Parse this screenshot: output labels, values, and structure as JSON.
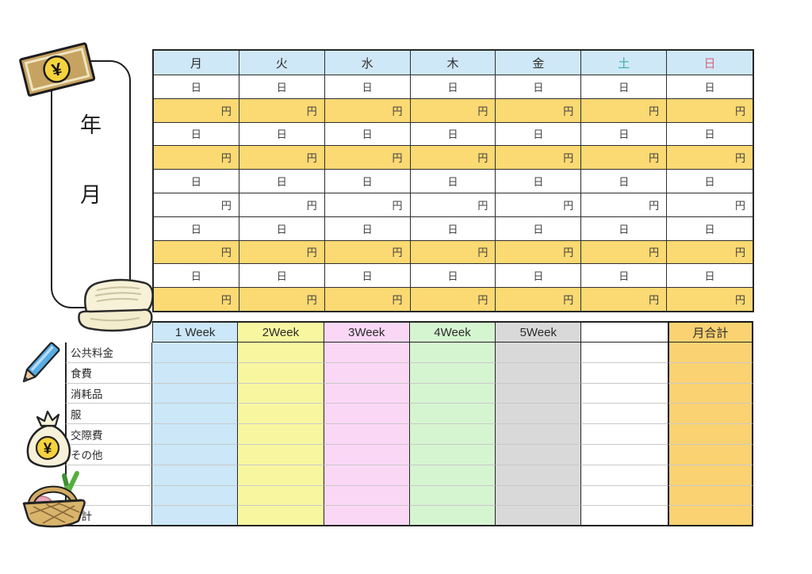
{
  "title_panel": {
    "year_label": "年",
    "month_label": "月"
  },
  "calendar": {
    "header_bg": "#cfe8f8",
    "grid_line_color": "#2d2d2d",
    "columns": 7,
    "day_headers": [
      {
        "label": "月",
        "color": "#2d2d2d"
      },
      {
        "label": "火",
        "color": "#2d2d2d"
      },
      {
        "label": "水",
        "color": "#2d2d2d"
      },
      {
        "label": "木",
        "color": "#2d2d2d"
      },
      {
        "label": "金",
        "color": "#2d2d2d"
      },
      {
        "label": "土",
        "color": "#38aeab"
      },
      {
        "label": "日",
        "color": "#d5697d"
      }
    ],
    "rows": [
      {
        "unit": "日",
        "bg": "#ffffff",
        "align": "center"
      },
      {
        "unit": "円",
        "bg": "#fbd973",
        "align": "right"
      },
      {
        "unit": "日",
        "bg": "#ffffff",
        "align": "center"
      },
      {
        "unit": "円",
        "bg": "#fbd973",
        "align": "right"
      },
      {
        "unit": "日",
        "bg": "#ffffff",
        "align": "center"
      },
      {
        "unit": "円",
        "bg": "#ffffff",
        "align": "right"
      },
      {
        "unit": "日",
        "bg": "#ffffff",
        "align": "center"
      },
      {
        "unit": "円",
        "bg": "#fbd973",
        "align": "right"
      },
      {
        "unit": "日",
        "bg": "#ffffff",
        "align": "center"
      },
      {
        "unit": "円",
        "bg": "#fbd973",
        "align": "right"
      }
    ]
  },
  "summary": {
    "columns": [
      {
        "label": "1 Week",
        "bg": "#cbe7f8",
        "emphasized": false
      },
      {
        "label": "2Week",
        "bg": "#f8f7a0",
        "emphasized": false
      },
      {
        "label": "3Week",
        "bg": "#fbd7f6",
        "emphasized": false
      },
      {
        "label": "4Week",
        "bg": "#d5f5d0",
        "emphasized": false
      },
      {
        "label": "5Week",
        "bg": "#d9d9d9",
        "emphasized": false
      },
      {
        "label": "",
        "bg": "#ffffff",
        "emphasized": false
      },
      {
        "label": "月合計",
        "bg": "#fad271",
        "emphasized": true
      }
    ],
    "row_labels": [
      "公共料金",
      "食費",
      "消耗品",
      "服",
      "交際費",
      "その他",
      "",
      "",
      "合計"
    ]
  },
  "icons": {
    "yen_symbol": "¥",
    "names": [
      "yen-bill-icon",
      "wallet-icon",
      "pencil-icon",
      "money-bag-icon",
      "basket-icon"
    ]
  }
}
